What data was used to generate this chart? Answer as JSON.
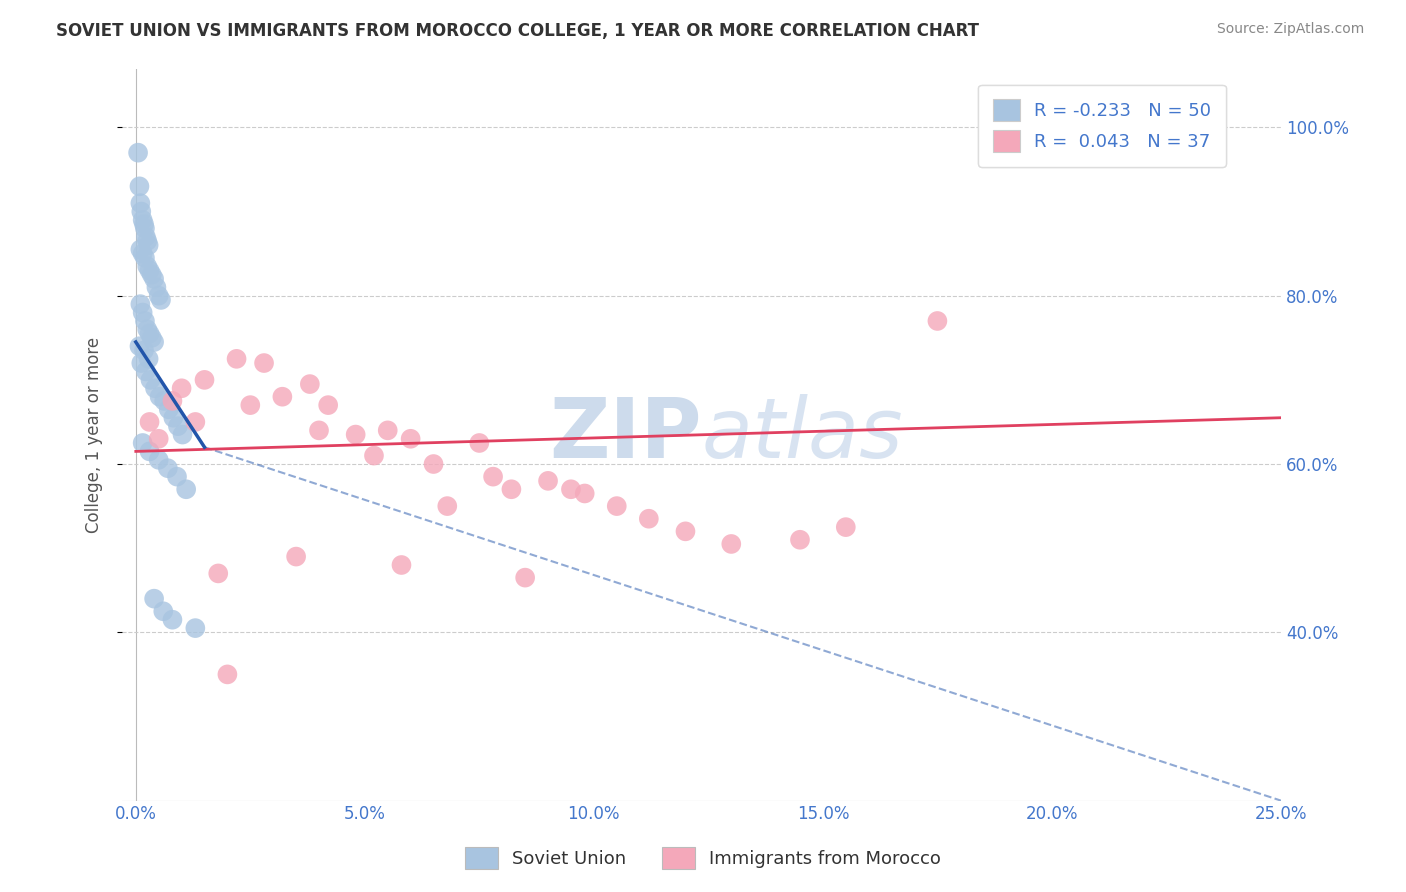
{
  "title": "SOVIET UNION VS IMMIGRANTS FROM MOROCCO COLLEGE, 1 YEAR OR MORE CORRELATION CHART",
  "source": "Source: ZipAtlas.com",
  "ylabel": "College, 1 year or more",
  "x_tick_labels": [
    "0.0%",
    "5.0%",
    "10.0%",
    "15.0%",
    "20.0%",
    "25.0%"
  ],
  "x_tick_values": [
    0.0,
    5.0,
    10.0,
    15.0,
    20.0,
    25.0
  ],
  "y_tick_labels": [
    "40.0%",
    "60.0%",
    "80.0%",
    "100.0%"
  ],
  "y_tick_values": [
    40.0,
    60.0,
    80.0,
    100.0
  ],
  "xlim": [
    -0.3,
    25.0
  ],
  "ylim": [
    20.0,
    107.0
  ],
  "r_soviet": -0.233,
  "n_soviet": 50,
  "r_morocco": 0.043,
  "n_morocco": 37,
  "blue_dot_color": "#a8c4e0",
  "pink_dot_color": "#f4a8ba",
  "blue_line_color": "#2255aa",
  "pink_line_color": "#e04060",
  "title_color": "#333333",
  "axis_label_color": "#555555",
  "tick_color": "#4477cc",
  "grid_color": "#cccccc",
  "watermark_color": "#ccd8ec",
  "background_color": "#ffffff",
  "legend_labels_bottom": [
    "Soviet Union",
    "Immigrants from Morocco"
  ],
  "soviet_x": [
    0.05,
    0.08,
    0.1,
    0.12,
    0.15,
    0.18,
    0.2,
    0.22,
    0.25,
    0.28,
    0.1,
    0.15,
    0.2,
    0.25,
    0.3,
    0.35,
    0.4,
    0.45,
    0.5,
    0.55,
    0.1,
    0.15,
    0.2,
    0.25,
    0.3,
    0.35,
    0.4,
    0.08,
    0.18,
    0.28,
    0.12,
    0.22,
    0.32,
    0.42,
    0.52,
    0.62,
    0.72,
    0.82,
    0.92,
    1.02,
    0.15,
    0.3,
    0.5,
    0.7,
    0.9,
    1.1,
    0.4,
    0.6,
    0.8,
    1.3
  ],
  "soviet_y": [
    97.0,
    93.0,
    91.0,
    90.0,
    89.0,
    88.5,
    88.0,
    87.0,
    86.5,
    86.0,
    85.5,
    85.0,
    84.5,
    83.5,
    83.0,
    82.5,
    82.0,
    81.0,
    80.0,
    79.5,
    79.0,
    78.0,
    77.0,
    76.0,
    75.5,
    75.0,
    74.5,
    74.0,
    73.5,
    72.5,
    72.0,
    71.0,
    70.0,
    69.0,
    68.0,
    67.5,
    66.5,
    65.5,
    64.5,
    63.5,
    62.5,
    61.5,
    60.5,
    59.5,
    58.5,
    57.0,
    44.0,
    42.5,
    41.5,
    40.5
  ],
  "morocco_x": [
    0.3,
    0.5,
    0.8,
    1.0,
    1.3,
    1.8,
    2.2,
    2.8,
    3.2,
    3.8,
    4.2,
    4.8,
    5.5,
    6.0,
    6.8,
    7.5,
    8.2,
    9.0,
    9.8,
    10.5,
    11.2,
    12.0,
    13.0,
    14.5,
    15.5,
    1.5,
    2.5,
    4.0,
    5.2,
    6.5,
    7.8,
    9.5,
    3.5,
    5.8,
    8.5,
    2.0,
    17.5
  ],
  "morocco_y": [
    65.0,
    63.0,
    67.5,
    69.0,
    65.0,
    47.0,
    72.5,
    72.0,
    68.0,
    69.5,
    67.0,
    63.5,
    64.0,
    63.0,
    55.0,
    62.5,
    57.0,
    58.0,
    56.5,
    55.0,
    53.5,
    52.0,
    50.5,
    51.0,
    52.5,
    70.0,
    67.0,
    64.0,
    61.0,
    60.0,
    58.5,
    57.0,
    49.0,
    48.0,
    46.5,
    35.0,
    77.0
  ],
  "blue_line_x0": 0.0,
  "blue_line_y0": 74.5,
  "blue_line_x1": 1.5,
  "blue_line_y1": 62.0,
  "blue_dash_x0": 1.5,
  "blue_dash_y0": 62.0,
  "blue_dash_x1": 25.0,
  "blue_dash_y1": 20.0,
  "pink_line_x0": 0.0,
  "pink_line_y0": 61.5,
  "pink_line_x1": 25.0,
  "pink_line_y1": 65.5
}
